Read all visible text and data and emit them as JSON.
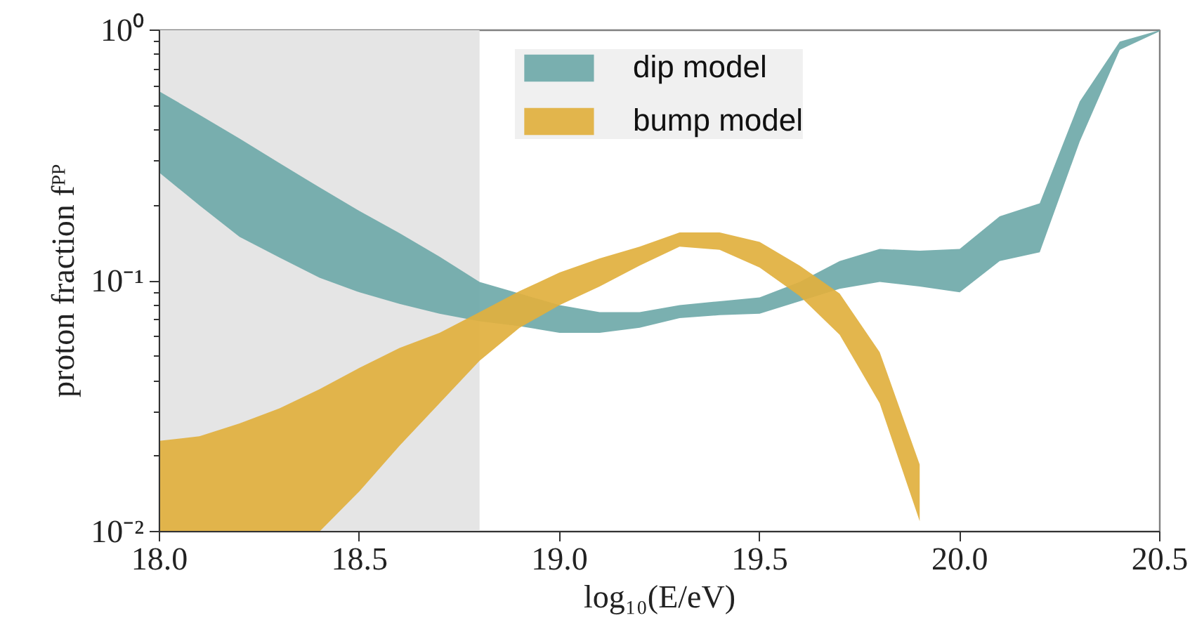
{
  "chart_data": {
    "type": "area",
    "xlabel": "log₁₀(E/eV)",
    "ylabel": "proton fraction fᴾᴾ",
    "x": [
      18.0,
      18.1,
      18.2,
      18.3,
      18.4,
      18.5,
      18.6,
      18.7,
      18.8,
      18.9,
      19.0,
      19.1,
      19.2,
      19.3,
      19.4,
      19.5,
      19.6,
      19.7,
      19.8,
      19.9,
      20.0,
      20.1,
      20.2,
      20.3,
      20.4,
      20.5
    ],
    "series": [
      {
        "name": "dip model",
        "color": "#6fa9a9",
        "values": [
          null,
          null,
          null,
          null,
          null,
          null,
          null,
          null,
          null,
          null,
          null,
          null,
          null,
          null,
          null,
          null,
          null,
          null,
          null,
          null,
          null,
          null,
          null,
          null,
          null,
          null
        ],
        "lower": [
          0.27,
          0.2,
          0.15,
          0.124,
          0.103,
          0.09,
          0.081,
          0.074,
          0.069,
          0.066,
          0.062,
          0.062,
          0.065,
          0.071,
          0.073,
          0.074,
          0.083,
          0.093,
          0.099,
          0.095,
          0.09,
          0.12,
          0.13,
          0.36,
          0.835,
          0.99
        ],
        "upper": [
          0.57,
          0.46,
          0.37,
          0.295,
          0.236,
          0.19,
          0.155,
          0.125,
          0.099,
          0.089,
          0.08,
          0.075,
          0.075,
          0.08,
          0.083,
          0.086,
          0.099,
          0.12,
          0.134,
          0.132,
          0.134,
          0.181,
          0.204,
          0.52,
          0.9,
          1.0
        ]
      },
      {
        "name": "bump model",
        "color": "#e1b03e",
        "x": [
          18.0,
          18.1,
          18.2,
          18.3,
          18.4,
          18.5,
          18.6,
          18.7,
          18.8,
          18.9,
          19.0,
          19.1,
          19.2,
          19.3,
          19.4,
          19.5,
          19.6,
          19.7,
          19.8,
          19.9
        ],
        "values": [
          null,
          null,
          null,
          null,
          null,
          null,
          null,
          null,
          null,
          null,
          null,
          null,
          null,
          null,
          null,
          null,
          null,
          null,
          null,
          null
        ],
        "lower": [
          0.01,
          0.01,
          0.01,
          0.01,
          0.01,
          0.0145,
          0.022,
          0.0325,
          0.048,
          0.065,
          0.08,
          0.095,
          0.115,
          0.137,
          0.133,
          0.113,
          0.087,
          0.061,
          0.0325,
          0.011
        ],
        "upper": [
          0.023,
          0.024,
          0.027,
          0.031,
          0.037,
          0.045,
          0.054,
          0.062,
          0.075,
          0.091,
          0.108,
          0.123,
          0.137,
          0.156,
          0.156,
          0.143,
          0.115,
          0.089,
          0.052,
          0.0185
        ]
      }
    ],
    "xlim": [
      18.0,
      20.5
    ],
    "ylim": [
      0.01,
      1
    ],
    "xticks": [
      {
        "value": 18,
        "label": "18.0"
      },
      {
        "value": 18.5,
        "label": "18.5"
      },
      {
        "value": 19,
        "label": "19.0"
      },
      {
        "value": 19.5,
        "label": "19.5"
      },
      {
        "value": 20,
        "label": "20.0"
      },
      {
        "value": 20.5,
        "label": "20.5"
      }
    ],
    "yticks": [
      {
        "value": 0.01,
        "label": "10⁻²"
      },
      {
        "value": 0.1,
        "label": "10⁻¹"
      },
      {
        "value": 1,
        "label": "10⁰"
      }
    ],
    "log": "y",
    "grid": false,
    "legend": "top",
    "bands": [
      {
        "axis": "x",
        "from": 18.0,
        "to": 18.8,
        "color": "#e5e5e5"
      }
    ]
  }
}
